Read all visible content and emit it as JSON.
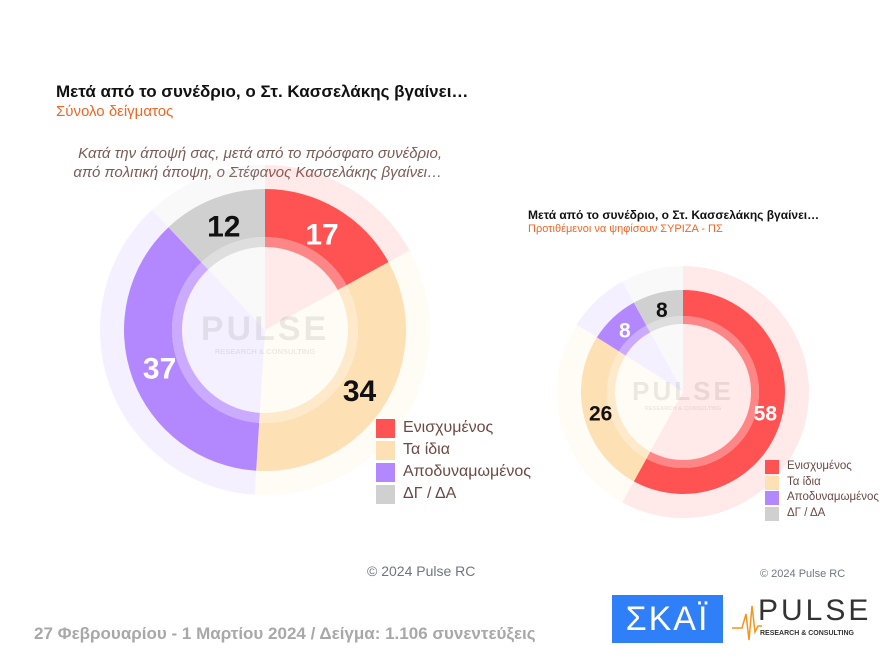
{
  "chart_data": [
    {
      "type": "pie",
      "title": "Μετά από το συνέδριο, ο Στ. Κασσελάκης βγαίνει…",
      "subtitle": "Σύνολο δείγματος",
      "question": [
        "Κατά την άποψή σας, μετά από το πρόσφατο συνέδριο,",
        "από πολιτική άποψη, ο Στέφανος Κασσελάκης βγαίνει…"
      ],
      "categories": [
        "Ενισχυμένος",
        "Τα ίδια",
        "Αποδυναμωμένος",
        "ΔΓ / ΔΑ"
      ],
      "values": [
        17,
        34,
        37,
        12
      ],
      "colors": [
        "#ff5252",
        "#fde0b4",
        "#b388ff",
        "#d0d0d0"
      ],
      "label_colors": [
        "#ffffff",
        "#111111",
        "#ffffff",
        "#111111"
      ],
      "legend": "bottom-right",
      "copyright": "© 2024 Pulse RC"
    },
    {
      "type": "pie",
      "title": "Μετά από το συνέδριο, ο Στ. Κασσελάκης βγαίνει…",
      "subtitle": "Προτιθέμενοι να ψηφίσουν ΣΥΡΙΖΑ - ΠΣ",
      "categories": [
        "Ενισχυμένος",
        "Τα ίδια",
        "Αποδυναμωμένος",
        "ΔΓ / ΔΑ"
      ],
      "values": [
        58,
        26,
        8,
        8
      ],
      "colors": [
        "#ff5252",
        "#fde0b4",
        "#b388ff",
        "#d0d0d0"
      ],
      "label_colors": [
        "#ffffff",
        "#111111",
        "#ffffff",
        "#111111"
      ],
      "legend": "bottom-right",
      "copyright": "© 2024 Pulse RC"
    }
  ],
  "watermark": {
    "text": "PULSE",
    "tagline": "RESEARCH & CONSULTING"
  },
  "footer": {
    "text": "27 Φεβρουαρίου - 1 Μαρτίου 2024  /  Δείγμα:  1.106 συνεντεύξεις"
  },
  "logos": {
    "skai": "ΣΚΑΪ",
    "pulse": "PULSE",
    "pulse_tagline": "RESEARCH & CONSULTING"
  }
}
